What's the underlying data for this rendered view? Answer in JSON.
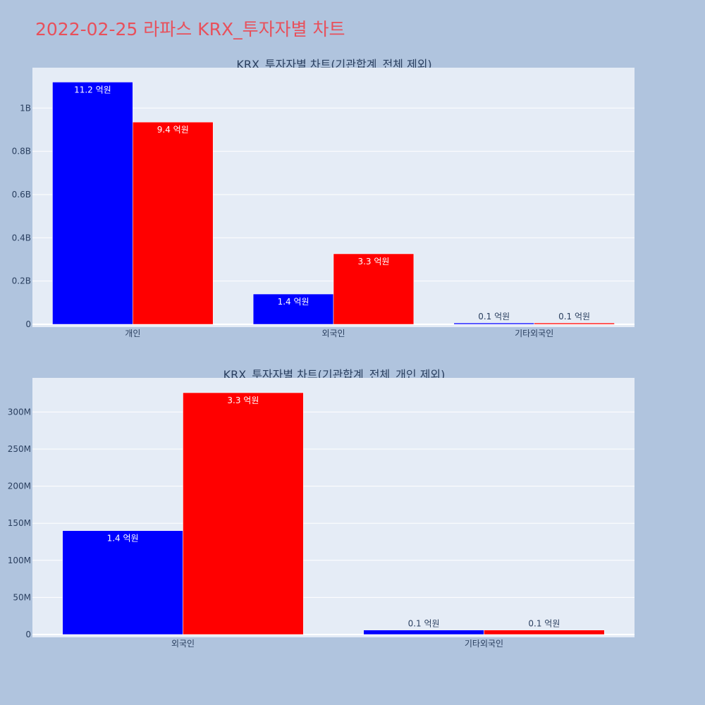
{
  "title": "2022-02-25 라파스 KRX_투자자별 차트",
  "colors": {
    "series_a": "#0000ff",
    "series_b": "#ff0000",
    "plot_bg": "#e5ecf6",
    "page_bg": "#b0c4de"
  },
  "chart_data": [
    {
      "type": "bar",
      "title": "KRX_투자자별 차트(기관합계_전체 제외)",
      "categories": [
        "개인",
        "외국인",
        "기타외국인"
      ],
      "series": [
        {
          "values": [
            1120000000,
            140000000,
            6000000
          ],
          "labels": [
            "11.2 억원",
            "1.4 억원",
            "0.1 억원"
          ],
          "color": "#0000ff"
        },
        {
          "values": [
            935000000,
            326000000,
            6000000
          ],
          "labels": [
            "9.4 억원",
            "3.3 억원",
            "0.1 억원"
          ],
          "color": "#ff0000"
        }
      ],
      "ylim": [
        0,
        1190000000
      ],
      "yticks": [
        0,
        200000000,
        400000000,
        600000000,
        800000000,
        1000000000
      ],
      "ytick_labels": [
        "0",
        "0.2B",
        "0.4B",
        "0.6B",
        "0.8B",
        "1B"
      ],
      "grid": true,
      "legend": "none"
    },
    {
      "type": "bar",
      "title": "KRX_투자자별 차트(기관합계_전체_개인 제외)",
      "categories": [
        "외국인",
        "기타외국인"
      ],
      "series": [
        {
          "values": [
            140000000,
            6000000
          ],
          "labels": [
            "1.4 억원",
            "0.1 억원"
          ],
          "color": "#0000ff"
        },
        {
          "values": [
            326000000,
            6000000
          ],
          "labels": [
            "3.3 억원",
            "0.1 억원"
          ],
          "color": "#ff0000"
        }
      ],
      "ylim": [
        0,
        346000000
      ],
      "yticks": [
        0,
        50000000,
        100000000,
        150000000,
        200000000,
        250000000,
        300000000
      ],
      "ytick_labels": [
        "0",
        "50M",
        "100M",
        "150M",
        "200M",
        "250M",
        "300M"
      ],
      "grid": true,
      "legend": "none"
    }
  ]
}
